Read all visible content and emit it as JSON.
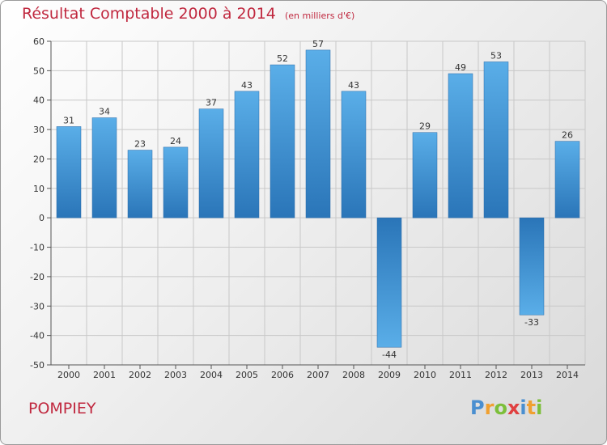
{
  "chart_data": {
    "type": "bar",
    "title": "Résultat Comptable 2000 à 2014",
    "unit_label": "(en milliers d'€)",
    "categories": [
      "2000",
      "2001",
      "2002",
      "2003",
      "2004",
      "2005",
      "2006",
      "2007",
      "2008",
      "2009",
      "2010",
      "2011",
      "2012",
      "2013",
      "2014"
    ],
    "values": [
      31,
      34,
      23,
      24,
      37,
      43,
      52,
      57,
      43,
      -44,
      29,
      49,
      53,
      -33,
      26
    ],
    "ylim": [
      -50,
      60
    ],
    "yticks": [
      60,
      50,
      40,
      30,
      20,
      10,
      0,
      -10,
      -20,
      -30,
      -40,
      -50
    ],
    "grid": true,
    "xlabel": "",
    "ylabel": ""
  },
  "commune": "POMPIEY",
  "logo": {
    "letters": [
      "P",
      "r",
      "o",
      "x",
      "i",
      "t",
      "i"
    ],
    "colors": [
      "#4a8fd0",
      "#f0a030",
      "#7cbf3a",
      "#e04040",
      "#4a8fd0",
      "#f0a030",
      "#7cbf3a"
    ]
  },
  "colors": {
    "title": "#c0283f",
    "bar_light": "#5aaee8",
    "bar_dark": "#2a75b8",
    "grid": "#c8c8c8"
  }
}
